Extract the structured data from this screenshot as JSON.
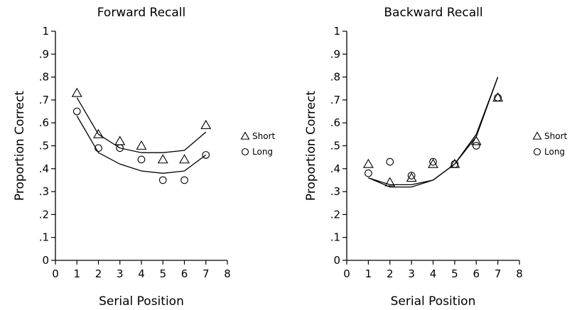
{
  "chart_data": [
    {
      "type": "scatter",
      "title": "Forward Recall",
      "xlabel": "Serial Position",
      "ylabel": "Proportion Correct",
      "xlim": [
        0,
        8
      ],
      "ylim": [
        0,
        1
      ],
      "xticks": [
        "0",
        "1",
        "2",
        "3",
        "4",
        "5",
        "6",
        "7",
        "8"
      ],
      "yticks": [
        "0",
        ".1",
        ".2",
        ".3",
        ".4",
        ".5",
        ".6",
        ".7",
        ".8",
        ".9",
        "1"
      ],
      "legend_position": "right",
      "series": [
        {
          "name": "Short",
          "marker": "triangle",
          "points": [
            [
              1,
              0.73
            ],
            [
              2,
              0.55
            ],
            [
              3,
              0.52
            ],
            [
              4,
              0.5
            ],
            [
              5,
              0.44
            ],
            [
              6,
              0.44
            ],
            [
              7,
              0.59
            ]
          ],
          "fit": [
            [
              1,
              0.71
            ],
            [
              2,
              0.55
            ],
            [
              3,
              0.49
            ],
            [
              4,
              0.47
            ],
            [
              5,
              0.47
            ],
            [
              6,
              0.48
            ],
            [
              7,
              0.56
            ]
          ]
        },
        {
          "name": "Long",
          "marker": "circle",
          "points": [
            [
              1,
              0.65
            ],
            [
              2,
              0.49
            ],
            [
              3,
              0.49
            ],
            [
              4,
              0.44
            ],
            [
              5,
              0.35
            ],
            [
              6,
              0.35
            ],
            [
              7,
              0.46
            ]
          ],
          "fit": [
            [
              1,
              0.63
            ],
            [
              2,
              0.47
            ],
            [
              3,
              0.42
            ],
            [
              4,
              0.39
            ],
            [
              5,
              0.38
            ],
            [
              6,
              0.39
            ],
            [
              7,
              0.46
            ]
          ]
        }
      ]
    },
    {
      "type": "scatter",
      "title": "Backward Recall",
      "xlabel": "Serial Position",
      "ylabel": "Proportion Correct",
      "xlim": [
        0,
        8
      ],
      "ylim": [
        0,
        1
      ],
      "xticks": [
        "0",
        "1",
        "2",
        "3",
        "4",
        "5",
        "6",
        "7",
        "8"
      ],
      "yticks": [
        "0",
        ".1",
        ".2",
        ".3",
        ".4",
        ".5",
        ".6",
        ".7",
        ".8",
        ".9",
        "1"
      ],
      "legend_position": "right",
      "series": [
        {
          "name": "Short",
          "marker": "triangle",
          "points": [
            [
              1,
              0.42
            ],
            [
              2,
              0.34
            ],
            [
              3,
              0.36
            ],
            [
              4,
              0.42
            ],
            [
              5,
              0.42
            ],
            [
              6,
              0.52
            ],
            [
              7,
              0.71
            ]
          ],
          "fit": [
            [
              1,
              0.36
            ],
            [
              2,
              0.33
            ],
            [
              3,
              0.33
            ],
            [
              4,
              0.35
            ],
            [
              5,
              0.42
            ],
            [
              6,
              0.55
            ],
            [
              7,
              0.8
            ]
          ]
        },
        {
          "name": "Long",
          "marker": "circle",
          "points": [
            [
              1,
              0.38
            ],
            [
              2,
              0.43
            ],
            [
              3,
              0.37
            ],
            [
              4,
              0.43
            ],
            [
              5,
              0.42
            ],
            [
              6,
              0.5
            ],
            [
              7,
              0.71
            ]
          ],
          "fit": [
            [
              1,
              0.36
            ],
            [
              2,
              0.32
            ],
            [
              3,
              0.32
            ],
            [
              4,
              0.35
            ],
            [
              5,
              0.42
            ],
            [
              6,
              0.54
            ],
            [
              7,
              0.8
            ]
          ]
        }
      ]
    }
  ]
}
